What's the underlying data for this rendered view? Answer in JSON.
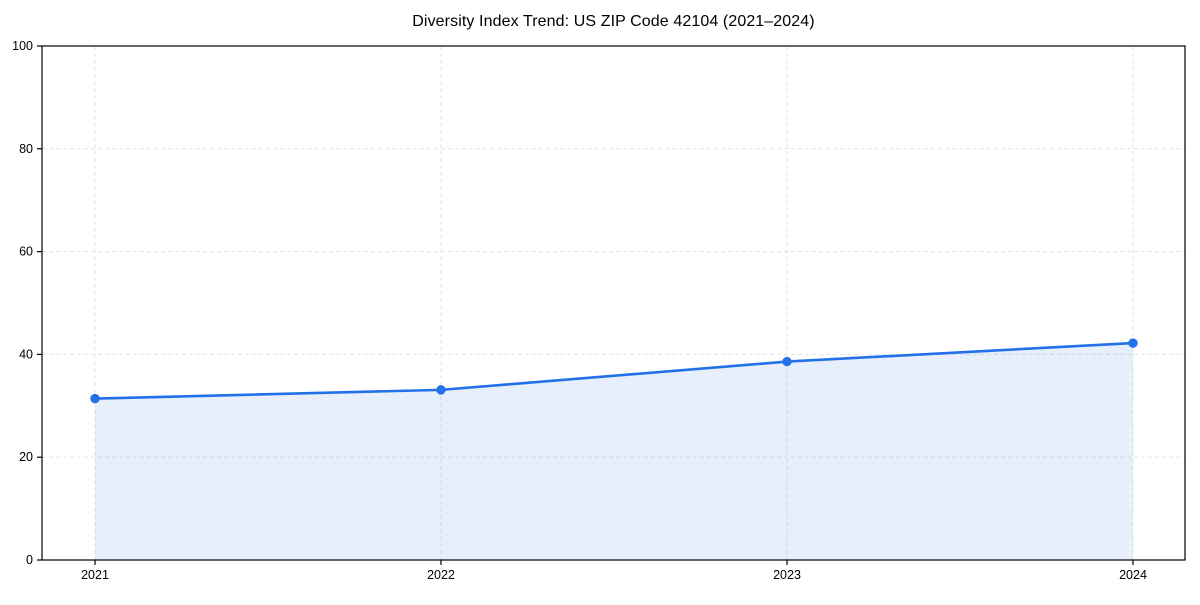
{
  "chart_data": {
    "type": "area",
    "title": "Diversity Index Trend: US ZIP Code 42104 (2021–2024)",
    "categories": [
      "2021",
      "2022",
      "2023",
      "2024"
    ],
    "series": [
      {
        "name": "Diversity Index",
        "values": [
          31.4,
          33.1,
          38.6,
          42.2
        ]
      }
    ],
    "xlabel": "",
    "ylabel": "",
    "ylim": [
      0,
      100
    ],
    "yticks": [
      0,
      20,
      40,
      60,
      80,
      100
    ],
    "grid": "dashed",
    "legend_position": "none",
    "marker": "circle",
    "colors": {
      "line": "#2271e8",
      "fill": "rgba(34,113,232,0.11)",
      "grid": "#e3e3e3",
      "frame": "#000000",
      "text": "#000000",
      "background": "#ffffff"
    }
  }
}
